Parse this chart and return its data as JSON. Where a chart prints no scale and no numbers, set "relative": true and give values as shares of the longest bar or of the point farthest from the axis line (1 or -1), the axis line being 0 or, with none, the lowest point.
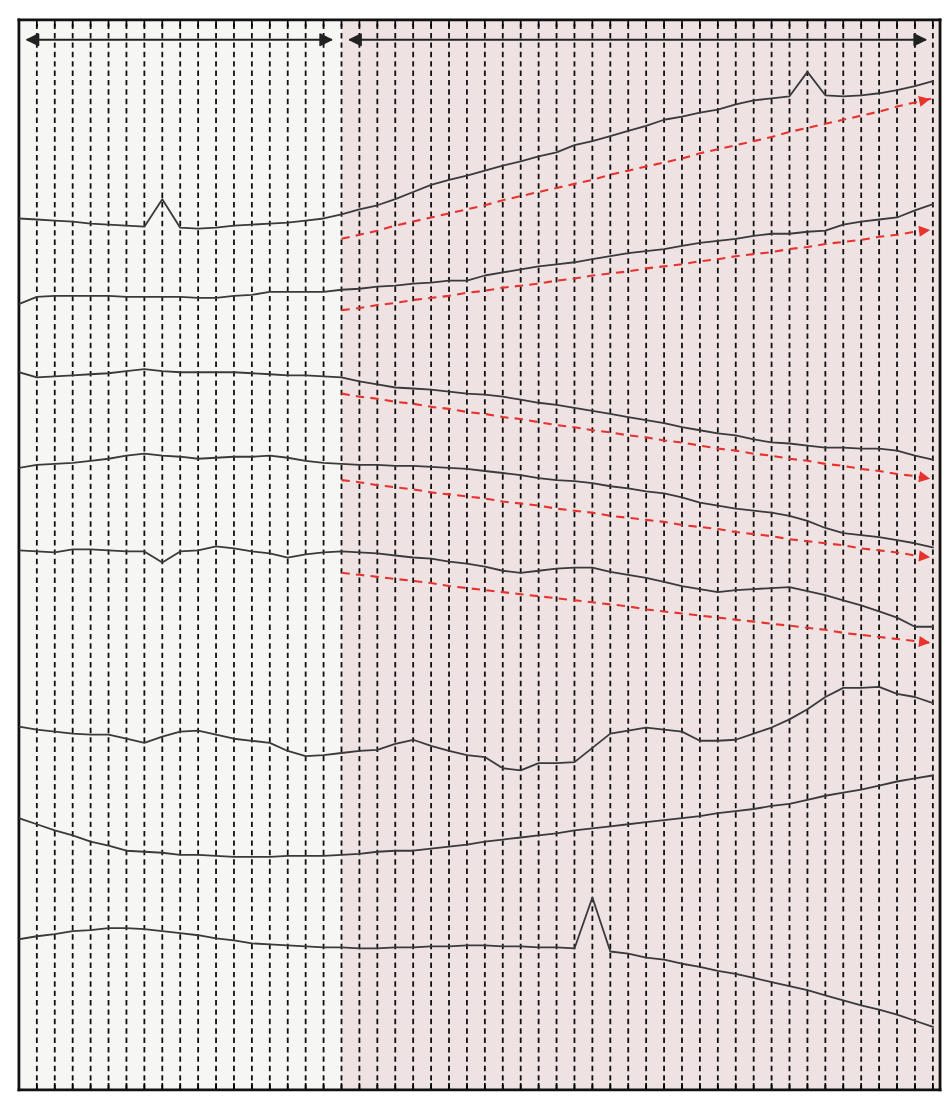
{
  "chart_data": {
    "type": "line",
    "relative": true,
    "grid": "x",
    "line_style": "solid",
    "categories": [
      null,
      null,
      null,
      null,
      null,
      null,
      null,
      null,
      null,
      null,
      null,
      null,
      null,
      null,
      null,
      null,
      null,
      null,
      null,
      null,
      null,
      null,
      null,
      null,
      null,
      null,
      null,
      null,
      null,
      null,
      null,
      null,
      null,
      null,
      null,
      null,
      null,
      null,
      null,
      null,
      null,
      null,
      null,
      null,
      null,
      null,
      null,
      null,
      null,
      null,
      null,
      null
    ],
    "series": [
      {
        "color": "#3a3a3a",
        "values": [
          0.856,
          0.855,
          0.854,
          0.853,
          0.851,
          0.85,
          0.849,
          0.848,
          0.875,
          0.847,
          0.846,
          0.847,
          0.849,
          0.85,
          0.851,
          0.852,
          0.854,
          0.856,
          0.86,
          0.865,
          0.869,
          0.875,
          0.882,
          0.889,
          0.894,
          0.898,
          0.903,
          0.908,
          0.912,
          0.917,
          0.921,
          0.928,
          0.932,
          0.937,
          0.942,
          0.947,
          0.953,
          0.956,
          0.96,
          0.963,
          0.968,
          0.972,
          0.974,
          0.976,
          1.0,
          0.977,
          0.976,
          0.977,
          0.979,
          0.982,
          0.986,
          0.991
        ]
      },
      {
        "color": "#3a3a3a",
        "values": [
          0.772,
          0.779,
          0.78,
          0.78,
          0.78,
          0.78,
          0.779,
          0.779,
          0.779,
          0.779,
          0.778,
          0.778,
          0.78,
          0.781,
          0.784,
          0.784,
          0.784,
          0.784,
          0.786,
          0.787,
          0.789,
          0.79,
          0.792,
          0.793,
          0.795,
          0.795,
          0.8,
          0.803,
          0.806,
          0.809,
          0.811,
          0.813,
          0.816,
          0.819,
          0.822,
          0.824,
          0.826,
          0.829,
          0.832,
          0.834,
          0.836,
          0.839,
          0.841,
          0.841,
          0.843,
          0.844,
          0.85,
          0.853,
          0.855,
          0.857,
          0.864,
          0.87
        ]
      },
      {
        "color": "#3a3a3a",
        "values": [
          0.705,
          0.7,
          0.701,
          0.702,
          0.703,
          0.704,
          0.706,
          0.708,
          0.706,
          0.705,
          0.705,
          0.705,
          0.705,
          0.704,
          0.703,
          0.702,
          0.702,
          0.701,
          0.7,
          0.696,
          0.693,
          0.69,
          0.689,
          0.688,
          0.686,
          0.684,
          0.683,
          0.681,
          0.678,
          0.675,
          0.673,
          0.67,
          0.667,
          0.664,
          0.661,
          0.658,
          0.655,
          0.651,
          0.648,
          0.645,
          0.643,
          0.639,
          0.636,
          0.635,
          0.633,
          0.631,
          0.631,
          0.63,
          0.63,
          0.628,
          0.623,
          0.619
        ]
      },
      {
        "color": "#3a3a3a",
        "values": [
          0.611,
          0.614,
          0.615,
          0.616,
          0.618,
          0.62,
          0.623,
          0.625,
          0.623,
          0.622,
          0.62,
          0.621,
          0.622,
          0.622,
          0.623,
          0.621,
          0.618,
          0.616,
          0.615,
          0.614,
          0.614,
          0.613,
          0.613,
          0.612,
          0.611,
          0.61,
          0.608,
          0.606,
          0.604,
          0.601,
          0.599,
          0.598,
          0.596,
          0.593,
          0.591,
          0.588,
          0.586,
          0.582,
          0.577,
          0.574,
          0.571,
          0.569,
          0.567,
          0.564,
          0.559,
          0.552,
          0.547,
          0.545,
          0.543,
          0.54,
          0.537,
          0.533
        ]
      },
      {
        "color": "#3a3a3a",
        "values": [
          0.53,
          0.529,
          0.528,
          0.531,
          0.531,
          0.53,
          0.529,
          0.529,
          0.518,
          0.529,
          0.53,
          0.534,
          0.532,
          0.529,
          0.527,
          0.523,
          0.526,
          0.528,
          0.529,
          0.528,
          0.527,
          0.525,
          0.523,
          0.522,
          0.519,
          0.517,
          0.514,
          0.51,
          0.508,
          0.51,
          0.512,
          0.513,
          0.513,
          0.509,
          0.506,
          0.503,
          0.499,
          0.495,
          0.492,
          0.489,
          0.491,
          0.492,
          0.493,
          0.494,
          0.49,
          0.486,
          0.481,
          0.476,
          0.47,
          0.464,
          0.455,
          0.455
        ]
      },
      {
        "color": "#3a3a3a",
        "values": [
          0.357,
          0.354,
          0.352,
          0.35,
          0.349,
          0.349,
          0.345,
          0.341,
          0.347,
          0.352,
          0.353,
          0.349,
          0.345,
          0.343,
          0.341,
          0.333,
          0.328,
          0.329,
          0.331,
          0.333,
          0.334,
          0.34,
          0.344,
          0.338,
          0.333,
          0.329,
          0.327,
          0.316,
          0.314,
          0.321,
          0.321,
          0.322,
          0.336,
          0.35,
          0.353,
          0.356,
          0.354,
          0.352,
          0.343,
          0.343,
          0.344,
          0.35,
          0.356,
          0.364,
          0.374,
          0.386,
          0.395,
          0.395,
          0.396,
          0.389,
          0.386,
          0.38
        ]
      },
      {
        "color": "#3a3a3a",
        "values": [
          0.267,
          0.261,
          0.255,
          0.25,
          0.244,
          0.24,
          0.235,
          0.234,
          0.233,
          0.231,
          0.231,
          0.23,
          0.229,
          0.229,
          0.229,
          0.23,
          0.23,
          0.23,
          0.231,
          0.232,
          0.234,
          0.235,
          0.235,
          0.237,
          0.239,
          0.241,
          0.244,
          0.246,
          0.248,
          0.25,
          0.252,
          0.255,
          0.257,
          0.259,
          0.261,
          0.263,
          0.265,
          0.267,
          0.269,
          0.272,
          0.274,
          0.276,
          0.279,
          0.281,
          0.285,
          0.289,
          0.292,
          0.295,
          0.299,
          0.303,
          0.306,
          0.309
        ]
      },
      {
        "color": "#3a3a3a",
        "values": [
          0.148,
          0.151,
          0.153,
          0.156,
          0.157,
          0.159,
          0.159,
          0.158,
          0.156,
          0.154,
          0.152,
          0.149,
          0.147,
          0.144,
          0.143,
          0.142,
          0.141,
          0.14,
          0.14,
          0.139,
          0.139,
          0.14,
          0.14,
          0.141,
          0.141,
          0.142,
          0.142,
          0.141,
          0.141,
          0.14,
          0.14,
          0.139,
          0.189,
          0.136,
          0.134,
          0.13,
          0.128,
          0.124,
          0.121,
          0.117,
          0.114,
          0.11,
          0.106,
          0.102,
          0.098,
          0.093,
          0.088,
          0.083,
          0.079,
          0.074,
          0.068,
          0.062
        ]
      },
      {
        "color": "#e8322e",
        "line_style": "dashed",
        "values": [
          null,
          null,
          null,
          null,
          null,
          null,
          null,
          null,
          null,
          null,
          null,
          null,
          null,
          null,
          null,
          null,
          null,
          null,
          0.836,
          0.84,
          0.844,
          0.849,
          0.853,
          0.857,
          0.861,
          0.865,
          0.869,
          0.874,
          0.878,
          0.882,
          0.886,
          0.89,
          0.894,
          0.899,
          0.903,
          0.907,
          0.911,
          0.915,
          0.92,
          0.924,
          0.928,
          0.932,
          0.936,
          0.941,
          0.945,
          0.949,
          0.953,
          0.957,
          0.961,
          0.966,
          0.97,
          0.974
        ]
      },
      {
        "color": "#e8322e",
        "line_style": "dashed",
        "values": [
          null,
          null,
          null,
          null,
          null,
          null,
          null,
          null,
          null,
          null,
          null,
          null,
          null,
          null,
          null,
          null,
          null,
          null,
          0.766,
          0.768,
          0.771,
          0.773,
          0.776,
          0.778,
          0.78,
          0.783,
          0.785,
          0.788,
          0.79,
          0.792,
          0.795,
          0.797,
          0.8,
          0.802,
          0.804,
          0.807,
          0.809,
          0.811,
          0.814,
          0.816,
          0.819,
          0.821,
          0.823,
          0.826,
          0.828,
          0.831,
          0.833,
          0.835,
          0.838,
          0.84,
          0.843,
          0.845
        ]
      },
      {
        "color": "#e8322e",
        "line_style": "dashed",
        "values": [
          null,
          null,
          null,
          null,
          null,
          null,
          null,
          null,
          null,
          null,
          null,
          null,
          null,
          null,
          null,
          null,
          null,
          null,
          0.684,
          0.681,
          0.679,
          0.676,
          0.674,
          0.671,
          0.669,
          0.666,
          0.664,
          0.661,
          0.659,
          0.656,
          0.653,
          0.651,
          0.648,
          0.646,
          0.643,
          0.641,
          0.638,
          0.636,
          0.633,
          0.63,
          0.628,
          0.625,
          0.623,
          0.62,
          0.618,
          0.615,
          0.613,
          0.61,
          0.608,
          0.605,
          0.603,
          0.6
        ]
      },
      {
        "color": "#e8322e",
        "line_style": "dashed",
        "values": [
          null,
          null,
          null,
          null,
          null,
          null,
          null,
          null,
          null,
          null,
          null,
          null,
          null,
          null,
          null,
          null,
          null,
          null,
          0.599,
          0.597,
          0.594,
          0.592,
          0.59,
          0.587,
          0.585,
          0.583,
          0.581,
          0.578,
          0.576,
          0.574,
          0.571,
          0.569,
          0.567,
          0.564,
          0.562,
          0.56,
          0.558,
          0.555,
          0.553,
          0.551,
          0.548,
          0.546,
          0.544,
          0.541,
          0.539,
          0.537,
          0.535,
          0.532,
          0.53,
          0.528,
          0.525,
          0.523
        ]
      },
      {
        "color": "#e8322e",
        "line_style": "dashed",
        "values": [
          null,
          null,
          null,
          null,
          null,
          null,
          null,
          null,
          null,
          null,
          null,
          null,
          null,
          null,
          null,
          null,
          null,
          null,
          0.508,
          0.506,
          0.504,
          0.502,
          0.5,
          0.498,
          0.495,
          0.493,
          0.491,
          0.489,
          0.487,
          0.485,
          0.483,
          0.481,
          0.479,
          0.477,
          0.475,
          0.472,
          0.47,
          0.468,
          0.466,
          0.464,
          0.462,
          0.46,
          0.458,
          0.456,
          0.454,
          0.452,
          0.449,
          0.447,
          0.445,
          0.443,
          0.441,
          0.439
        ]
      }
    ]
  }
}
